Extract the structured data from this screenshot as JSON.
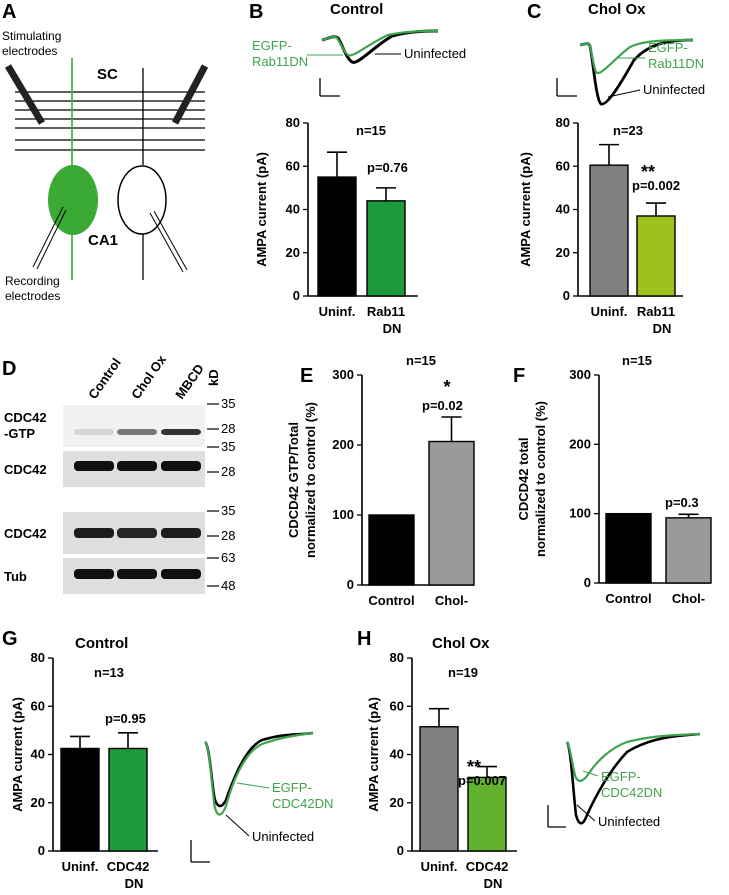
{
  "colors": {
    "black": "#000000",
    "green": "#1d9a3a",
    "green_light": "#62b22f",
    "lime": "#9cc21b",
    "gray": "#7f7f7f",
    "gray_light": "#9a9a9a",
    "trace_green": "#3fa34d",
    "cell_green": "#3aaa35"
  },
  "panel_letters": {
    "A": "A",
    "B": "B",
    "C": "C",
    "D": "D",
    "E": "E",
    "F": "F",
    "G": "G",
    "H": "H"
  },
  "schematic": {
    "stimulating": "Stimulating\nelectrodes",
    "sc": "SC",
    "ca1": "CA1",
    "recording": "Recording\nelectrodes"
  },
  "traces": {
    "B": {
      "label_green": "EGFP-\nRab11DN",
      "label_black": "Uninfected"
    },
    "C": {
      "label_green": "EGFP-\nRab11DN",
      "label_black": "Uninfected"
    },
    "G": {
      "label_green": "EGFP-\nCDC42DN",
      "label_black": "Uninfected"
    },
    "H": {
      "label_green": "EGFP-\nCDC42DN",
      "label_black": "Uninfected"
    }
  },
  "western": {
    "lanes": [
      "Control",
      "Chol Ox",
      "MBCD"
    ],
    "unit": "kD",
    "rows": [
      {
        "label": "CDC42\n-GTP",
        "markers": [
          "35",
          "28"
        ]
      },
      {
        "label": "CDC42",
        "markers": [
          "35",
          "28"
        ]
      },
      {
        "label": "CDC42",
        "markers": [
          "35",
          "28"
        ]
      },
      {
        "label": "Tub",
        "markers": [
          "63",
          "48"
        ]
      }
    ]
  },
  "chart_data": [
    {
      "panel": "B",
      "type": "bar",
      "title": "Control",
      "categories": [
        "Uninf.",
        "Rab11\nDN"
      ],
      "values": [
        55,
        44
      ],
      "errors": [
        11.5,
        6
      ],
      "bar_colors": [
        "#000000",
        "#1d9a3a"
      ],
      "ylabel": "AMPA current (pA)",
      "ylim": [
        0,
        80
      ],
      "yticks": [
        0,
        20,
        40,
        60,
        80
      ],
      "annotations": {
        "n": "n=15",
        "p": "p=0.76",
        "stars": ""
      }
    },
    {
      "panel": "C",
      "type": "bar",
      "title": "Chol Ox",
      "categories": [
        "Uninf.",
        "Rab11\nDN"
      ],
      "values": [
        60.5,
        37
      ],
      "errors": [
        9.5,
        6
      ],
      "bar_colors": [
        "#7f7f7f",
        "#9cc21b"
      ],
      "ylabel": "AMPA current (pA)",
      "ylim": [
        0,
        80
      ],
      "yticks": [
        0,
        20,
        40,
        60,
        80
      ],
      "annotations": {
        "n": "n=23",
        "p": "p=0.002",
        "stars": "**"
      }
    },
    {
      "panel": "E",
      "type": "bar",
      "title": "",
      "categories": [
        "Control",
        "Chol-"
      ],
      "values": [
        100,
        205
      ],
      "errors": [
        0,
        35
      ],
      "bar_colors": [
        "#000000",
        "#9a9a9a"
      ],
      "ylabel": "CDCD42 GTP/Total\nnormalized to control (%)",
      "ylim": [
        0,
        300
      ],
      "yticks": [
        0,
        100,
        200,
        300
      ],
      "annotations": {
        "n": "n=15",
        "p": "p=0.02",
        "stars": "*"
      }
    },
    {
      "panel": "F",
      "type": "bar",
      "title": "",
      "categories": [
        "Control",
        "Chol-"
      ],
      "values": [
        100,
        94
      ],
      "errors": [
        0,
        5
      ],
      "bar_colors": [
        "#000000",
        "#9a9a9a"
      ],
      "ylabel": "CDCD42 total\nnormalized to control (%)",
      "ylim": [
        0,
        300
      ],
      "yticks": [
        0,
        100,
        200,
        300
      ],
      "annotations": {
        "n": "n=15",
        "p": "p=0.3",
        "stars": ""
      }
    },
    {
      "panel": "G",
      "type": "bar",
      "title": "Control",
      "categories": [
        "Uninf.",
        "CDC42\nDN"
      ],
      "values": [
        42.5,
        42.5
      ],
      "errors": [
        5,
        6.5
      ],
      "bar_colors": [
        "#000000",
        "#1d9a3a"
      ],
      "ylabel": "AMPA current (pA)",
      "ylim": [
        0,
        80
      ],
      "yticks": [
        0,
        20,
        40,
        60,
        80
      ],
      "annotations": {
        "n": "n=13",
        "p": "p=0.95",
        "stars": ""
      }
    },
    {
      "panel": "H",
      "type": "bar",
      "title": "Chol Ox",
      "categories": [
        "Uninf.",
        "CDC42\nDN"
      ],
      "values": [
        51.5,
        30.5
      ],
      "errors": [
        7.5,
        4.5
      ],
      "bar_colors": [
        "#7f7f7f",
        "#62b22f"
      ],
      "ylabel": "AMPA current (pA)",
      "ylim": [
        0,
        80
      ],
      "yticks": [
        0,
        20,
        40,
        60,
        80
      ],
      "annotations": {
        "n": "n=19",
        "p": "p=0.007",
        "stars": "**"
      }
    }
  ]
}
